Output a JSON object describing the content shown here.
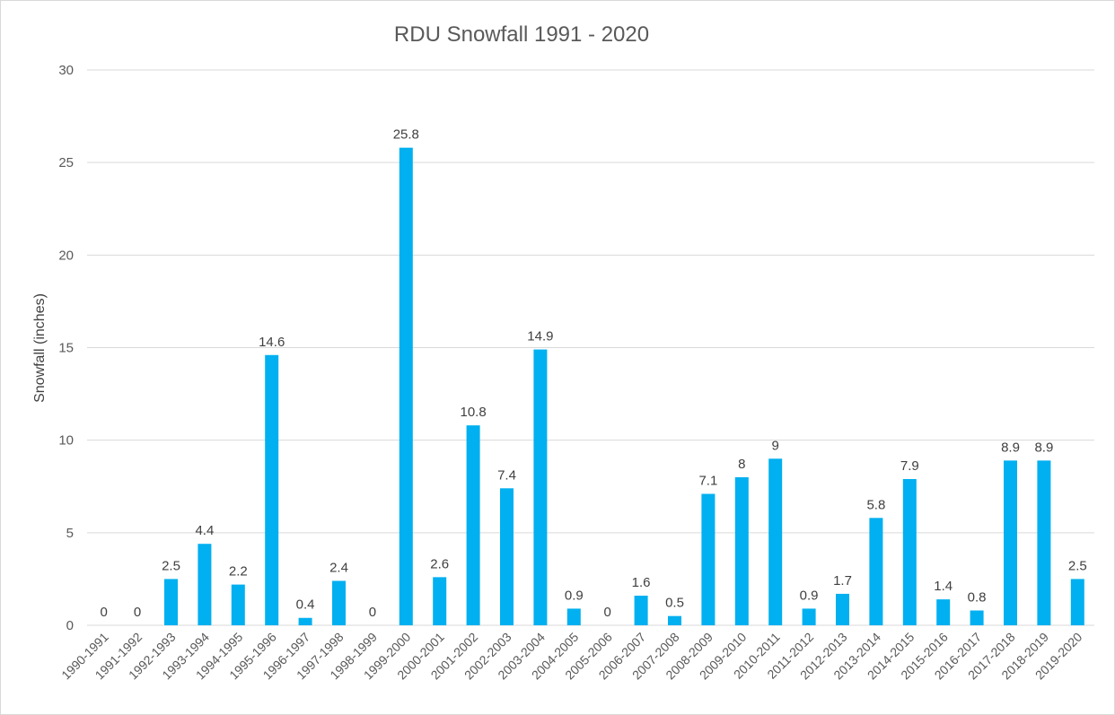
{
  "chart_data": {
    "type": "bar",
    "title": "RDU Snowfall 1991 - 2020",
    "xlabel": "",
    "ylabel": "Snowfall (inches)",
    "ylim": [
      0,
      30
    ],
    "yticks": [
      0,
      5,
      10,
      15,
      20,
      25,
      30
    ],
    "grid": true,
    "bar_color": "#00B0F0",
    "categories": [
      "1990-1991",
      "1991-1992",
      "1992-1993",
      "1993-1994",
      "1994-1995",
      "1995-1996",
      "1996-1997",
      "1997-1998",
      "1998-1999",
      "1999-2000",
      "2000-2001",
      "2001-2002",
      "2002-2003",
      "2003-2004",
      "2004-2005",
      "2005-2006",
      "2006-2007",
      "2007-2008",
      "2008-2009",
      "2009-2010",
      "2010-2011",
      "2011-2012",
      "2012-2013",
      "2013-2014",
      "2014-2015",
      "2015-2016",
      "2016-2017",
      "2017-2018",
      "2018-2019",
      "2019-2020"
    ],
    "values": [
      0,
      0,
      2.5,
      4.4,
      2.2,
      14.6,
      0.4,
      2.4,
      0,
      25.8,
      2.6,
      10.8,
      7.4,
      14.9,
      0.9,
      0,
      1.6,
      0.5,
      7.1,
      8,
      9,
      0.9,
      1.7,
      5.8,
      7.9,
      1.4,
      0.8,
      8.9,
      8.9,
      2.5
    ]
  }
}
